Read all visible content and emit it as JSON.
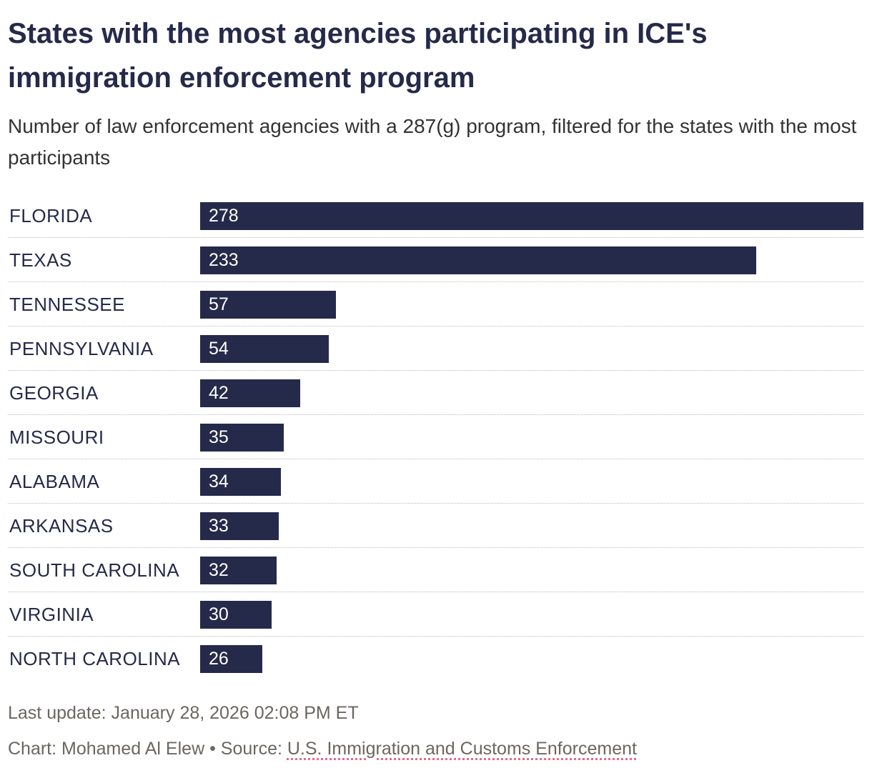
{
  "title": "States with the most agencies participating in ICE's immigration enforcement program",
  "subtitle": "Number of law enforcement agencies with a 287(g) program, filtered for the states with the most participants",
  "chart_data": {
    "type": "bar",
    "orientation": "horizontal",
    "categories": [
      "FLORIDA",
      "TEXAS",
      "TENNESSEE",
      "PENNSYLVANIA",
      "GEORGIA",
      "MISSOURI",
      "ALABAMA",
      "ARKANSAS",
      "SOUTH CAROLINA",
      "VIRGINIA",
      "NORTH CAROLINA"
    ],
    "values": [
      278,
      233,
      57,
      54,
      42,
      35,
      34,
      33,
      32,
      30,
      26
    ],
    "xlim": [
      0,
      278
    ],
    "bar_color": "#252a4a"
  },
  "footer": {
    "last_update": "Last update: January 28, 2026 02:08 PM ET",
    "credit": "Chart: Mohamed Al Elew • Source: ",
    "source_link": "U.S. Immigration and Customs Enforcement"
  }
}
